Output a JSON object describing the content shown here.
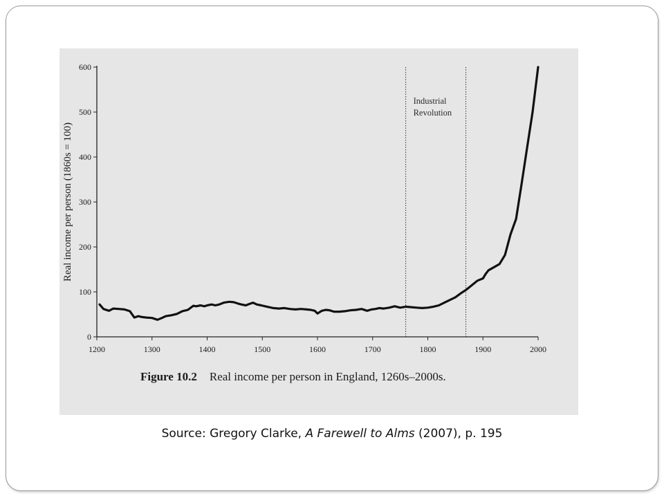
{
  "chart_data": {
    "type": "line",
    "title": "",
    "caption_number": "Figure 10.2",
    "caption_text": "Real income per person in England, 1260s–2000s.",
    "xlabel": "",
    "ylabel": "Real income per person (1860s = 100)",
    "xlim": [
      1200,
      2000
    ],
    "ylim": [
      0,
      600
    ],
    "x_ticks": [
      1200,
      1300,
      1400,
      1500,
      1600,
      1700,
      1800,
      1900,
      2000
    ],
    "y_ticks": [
      0,
      100,
      200,
      300,
      400,
      500,
      600
    ],
    "grid": false,
    "annotations": [
      {
        "label_lines": [
          "Industrial",
          "Revolution"
        ],
        "x_start": 1760,
        "x_end": 1869
      }
    ],
    "series": [
      {
        "x": [
          1205,
          1212,
          1222,
          1230,
          1240,
          1250,
          1260,
          1268,
          1275,
          1282,
          1290,
          1300,
          1310,
          1318,
          1325,
          1335,
          1345,
          1355,
          1365,
          1375,
          1380,
          1388,
          1395,
          1400,
          1408,
          1415,
          1422,
          1430,
          1440,
          1448,
          1456,
          1462,
          1470,
          1476,
          1483,
          1490,
          1498,
          1505,
          1512,
          1520,
          1530,
          1540,
          1550,
          1560,
          1570,
          1580,
          1588,
          1595,
          1600,
          1608,
          1615,
          1622,
          1630,
          1640,
          1650,
          1660,
          1670,
          1680,
          1690,
          1698,
          1705,
          1712,
          1720,
          1730,
          1740,
          1750,
          1760,
          1770,
          1780,
          1790,
          1800,
          1810,
          1820,
          1830,
          1840,
          1850,
          1860,
          1870,
          1880,
          1890,
          1900,
          1905,
          1910,
          1920,
          1930,
          1940,
          1950,
          1960,
          1970,
          1980,
          1990,
          2000
        ],
        "y": [
          72,
          62,
          58,
          63,
          62,
          61,
          57,
          43,
          46,
          44,
          43,
          42,
          38,
          42,
          46,
          48,
          51,
          57,
          60,
          69,
          68,
          70,
          68,
          70,
          72,
          70,
          72,
          76,
          78,
          77,
          74,
          72,
          70,
          73,
          76,
          72,
          70,
          68,
          66,
          64,
          63,
          64,
          62,
          61,
          62,
          61,
          60,
          58,
          52,
          58,
          60,
          59,
          56,
          56,
          57,
          59,
          60,
          62,
          58,
          61,
          62,
          64,
          63,
          65,
          68,
          65,
          67,
          66,
          65,
          64,
          65,
          67,
          70,
          76,
          82,
          88,
          97,
          105,
          115,
          125,
          130,
          140,
          148,
          155,
          162,
          182,
          228,
          262,
          340,
          420,
          500,
          600
        ]
      }
    ]
  },
  "source": {
    "prefix": "Source:  Gregory Clarke, ",
    "book_title": "A Farewell to Alms",
    "suffix": " (2007), p. 195"
  }
}
